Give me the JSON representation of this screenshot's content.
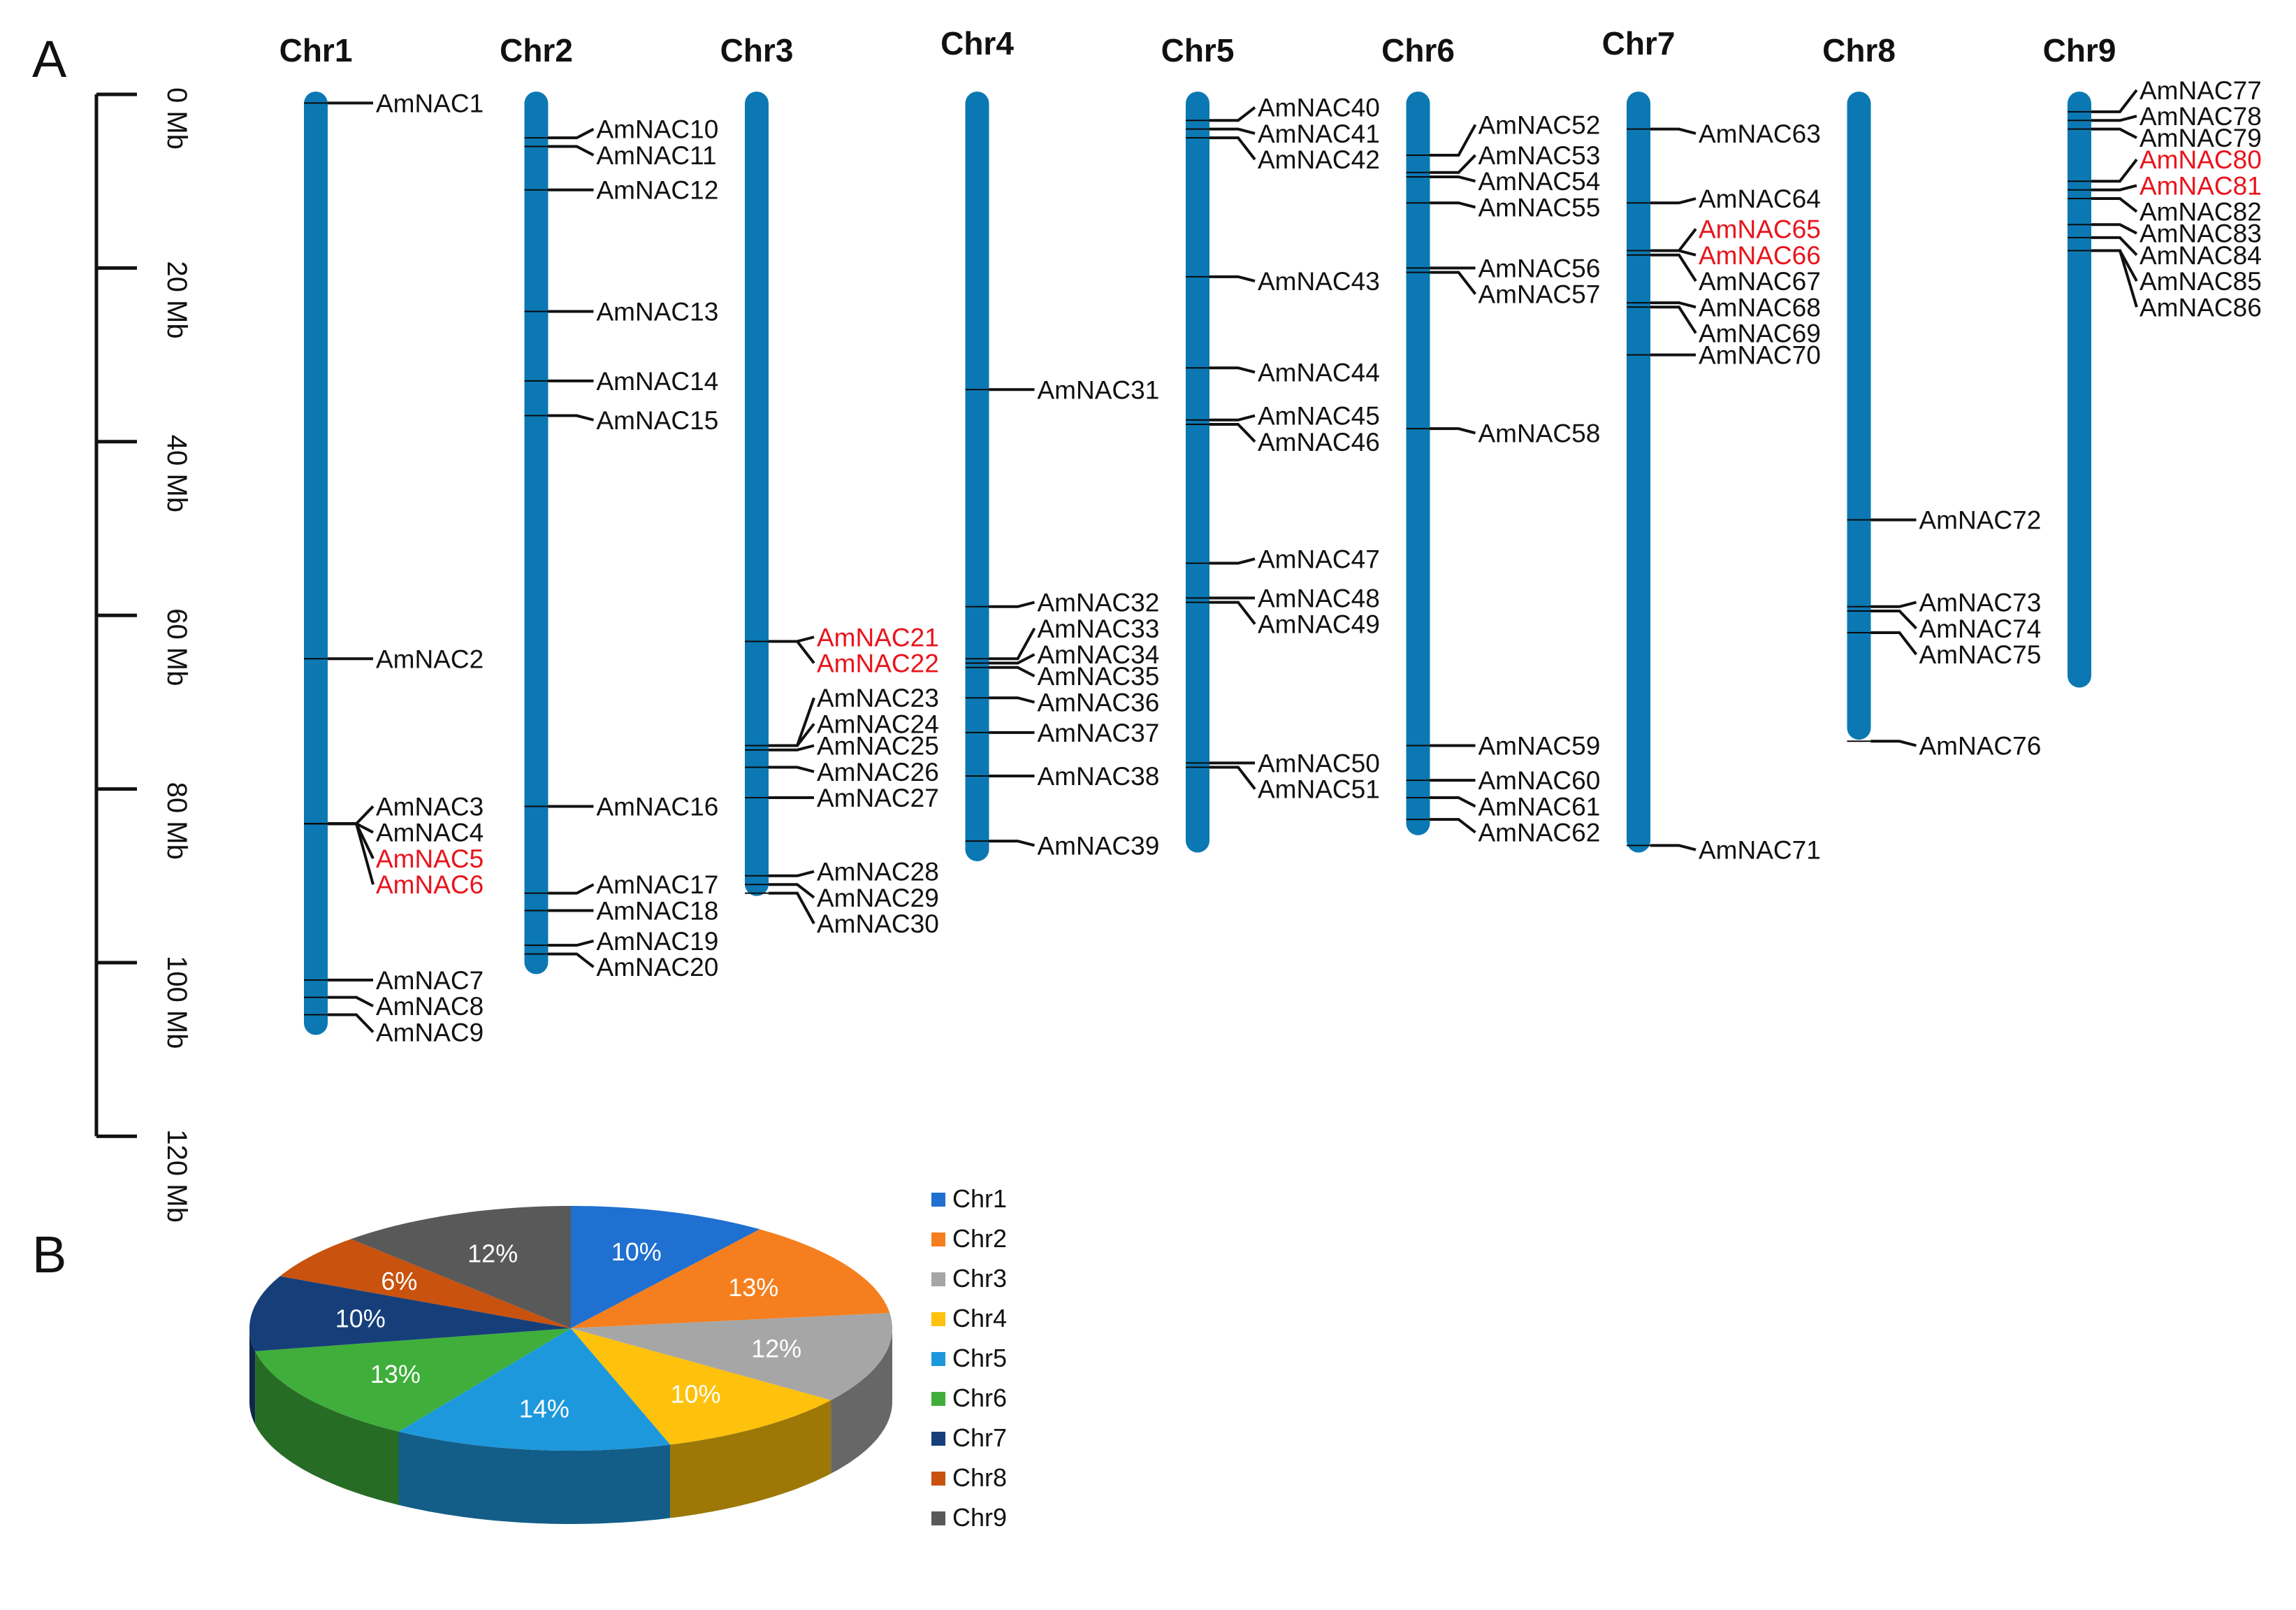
{
  "panels": {
    "a": "A",
    "b": "B"
  },
  "scale": {
    "unit": "Mb",
    "max": 120,
    "ticks": [
      {
        "value": 0,
        "label": "0 Mb"
      },
      {
        "value": 20,
        "label": "20 Mb"
      },
      {
        "value": 40,
        "label": "40 Mb"
      },
      {
        "value": 60,
        "label": "60 Mb"
      },
      {
        "value": 80,
        "label": "80 Mb"
      },
      {
        "value": 100,
        "label": "100 Mb"
      },
      {
        "value": 120,
        "label": "120 Mb"
      }
    ]
  },
  "colors": {
    "chromosome": "#0b78b3",
    "text": "#111111",
    "highlight": "#e8141c",
    "connector": "#111111"
  },
  "chart_data": [
    {
      "type": "chromosome-map",
      "title": "",
      "ylabel": "Mb",
      "ylim": [
        0,
        120
      ],
      "chromosomes": [
        {
          "name": "Chr1",
          "length": 108,
          "genes": [
            {
              "name": "AmNAC1",
              "pos": 1,
              "label_pos": 1,
              "highlight": false
            },
            {
              "name": "AmNAC2",
              "pos": 65,
              "label_pos": 65,
              "highlight": false
            },
            {
              "name": "AmNAC3",
              "pos": 84,
              "label_pos": 82,
              "highlight": false
            },
            {
              "name": "AmNAC4",
              "pos": 84,
              "label_pos": 85,
              "highlight": false
            },
            {
              "name": "AmNAC5",
              "pos": 84,
              "label_pos": 88,
              "highlight": true
            },
            {
              "name": "AmNAC6",
              "pos": 84,
              "label_pos": 91,
              "highlight": true
            },
            {
              "name": "AmNAC7",
              "pos": 102,
              "label_pos": 102,
              "highlight": false
            },
            {
              "name": "AmNAC8",
              "pos": 104,
              "label_pos": 105,
              "highlight": false
            },
            {
              "name": "AmNAC9",
              "pos": 106,
              "label_pos": 108,
              "highlight": false
            }
          ]
        },
        {
          "name": "Chr2",
          "length": 101,
          "genes": [
            {
              "name": "AmNAC10",
              "pos": 5,
              "label_pos": 4,
              "highlight": false
            },
            {
              "name": "AmNAC11",
              "pos": 6,
              "label_pos": 7,
              "highlight": false
            },
            {
              "name": "AmNAC12",
              "pos": 11,
              "label_pos": 11,
              "highlight": false
            },
            {
              "name": "AmNAC13",
              "pos": 25,
              "label_pos": 25,
              "highlight": false
            },
            {
              "name": "AmNAC14",
              "pos": 33,
              "label_pos": 33,
              "highlight": false
            },
            {
              "name": "AmNAC15",
              "pos": 37,
              "label_pos": 37.5,
              "highlight": false
            },
            {
              "name": "AmNAC16",
              "pos": 82,
              "label_pos": 82,
              "highlight": false
            },
            {
              "name": "AmNAC17",
              "pos": 92,
              "label_pos": 91,
              "highlight": false
            },
            {
              "name": "AmNAC18",
              "pos": 94,
              "label_pos": 94,
              "highlight": false
            },
            {
              "name": "AmNAC19",
              "pos": 98,
              "label_pos": 97.5,
              "highlight": false
            },
            {
              "name": "AmNAC20",
              "pos": 99,
              "label_pos": 100.5,
              "highlight": false
            }
          ]
        },
        {
          "name": "Chr3",
          "length": 92,
          "genes": [
            {
              "name": "AmNAC21",
              "pos": 63,
              "label_pos": 62.5,
              "highlight": true
            },
            {
              "name": "AmNAC22",
              "pos": 63,
              "label_pos": 65.5,
              "highlight": true
            },
            {
              "name": "AmNAC23",
              "pos": 75,
              "label_pos": 69.5,
              "highlight": false
            },
            {
              "name": "AmNAC24",
              "pos": 75,
              "label_pos": 72.5,
              "highlight": false
            },
            {
              "name": "AmNAC25",
              "pos": 75.5,
              "label_pos": 75,
              "highlight": false
            },
            {
              "name": "AmNAC26",
              "pos": 77.5,
              "label_pos": 78,
              "highlight": false
            },
            {
              "name": "AmNAC27",
              "pos": 81,
              "label_pos": 81,
              "highlight": false
            },
            {
              "name": "AmNAC28",
              "pos": 90,
              "label_pos": 89.5,
              "highlight": false
            },
            {
              "name": "AmNAC29",
              "pos": 91,
              "label_pos": 92.5,
              "highlight": false
            },
            {
              "name": "AmNAC30",
              "pos": 92,
              "label_pos": 95.5,
              "highlight": false
            }
          ]
        },
        {
          "name": "Chr4",
          "length": 88,
          "genes": [
            {
              "name": "AmNAC31",
              "pos": 34,
              "label_pos": 34,
              "highlight": false
            },
            {
              "name": "AmNAC32",
              "pos": 59,
              "label_pos": 58.5,
              "highlight": false
            },
            {
              "name": "AmNAC33",
              "pos": 65,
              "label_pos": 61.5,
              "highlight": false
            },
            {
              "name": "AmNAC34",
              "pos": 65.5,
              "label_pos": 64.5,
              "highlight": false
            },
            {
              "name": "AmNAC35",
              "pos": 66,
              "label_pos": 67,
              "highlight": false
            },
            {
              "name": "AmNAC36",
              "pos": 69.5,
              "label_pos": 70,
              "highlight": false
            },
            {
              "name": "AmNAC37",
              "pos": 73.5,
              "label_pos": 73.5,
              "highlight": false
            },
            {
              "name": "AmNAC38",
              "pos": 78.5,
              "label_pos": 78.5,
              "highlight": false
            },
            {
              "name": "AmNAC39",
              "pos": 86,
              "label_pos": 86.5,
              "highlight": false
            }
          ]
        },
        {
          "name": "Chr5",
          "length": 87,
          "genes": [
            {
              "name": "AmNAC40",
              "pos": 3,
              "label_pos": 1.5,
              "highlight": false
            },
            {
              "name": "AmNAC41",
              "pos": 4,
              "label_pos": 4.5,
              "highlight": false
            },
            {
              "name": "AmNAC42",
              "pos": 5,
              "label_pos": 7.5,
              "highlight": false
            },
            {
              "name": "AmNAC43",
              "pos": 21,
              "label_pos": 21.5,
              "highlight": false
            },
            {
              "name": "AmNAC44",
              "pos": 31.5,
              "label_pos": 32,
              "highlight": false
            },
            {
              "name": "AmNAC45",
              "pos": 37.5,
              "label_pos": 37,
              "highlight": false
            },
            {
              "name": "AmNAC46",
              "pos": 38,
              "label_pos": 40,
              "highlight": false
            },
            {
              "name": "AmNAC47",
              "pos": 54,
              "label_pos": 53.5,
              "highlight": false
            },
            {
              "name": "AmNAC48",
              "pos": 58,
              "label_pos": 58,
              "highlight": false
            },
            {
              "name": "AmNAC49",
              "pos": 58.5,
              "label_pos": 61,
              "highlight": false
            },
            {
              "name": "AmNAC50",
              "pos": 77,
              "label_pos": 77,
              "highlight": false
            },
            {
              "name": "AmNAC51",
              "pos": 77.5,
              "label_pos": 80,
              "highlight": false
            }
          ]
        },
        {
          "name": "Chr6",
          "length": 85,
          "genes": [
            {
              "name": "AmNAC52",
              "pos": 7,
              "label_pos": 3.5,
              "highlight": false
            },
            {
              "name": "AmNAC53",
              "pos": 9,
              "label_pos": 7,
              "highlight": false
            },
            {
              "name": "AmNAC54",
              "pos": 9.5,
              "label_pos": 10,
              "highlight": false
            },
            {
              "name": "AmNAC55",
              "pos": 12.5,
              "label_pos": 13,
              "highlight": false
            },
            {
              "name": "AmNAC56",
              "pos": 20,
              "label_pos": 20,
              "highlight": false
            },
            {
              "name": "AmNAC57",
              "pos": 20.5,
              "label_pos": 23,
              "highlight": false
            },
            {
              "name": "AmNAC58",
              "pos": 38.5,
              "label_pos": 39,
              "highlight": false
            },
            {
              "name": "AmNAC59",
              "pos": 75,
              "label_pos": 75,
              "highlight": false
            },
            {
              "name": "AmNAC60",
              "pos": 79,
              "label_pos": 79,
              "highlight": false
            },
            {
              "name": "AmNAC61",
              "pos": 81,
              "label_pos": 82,
              "highlight": false
            },
            {
              "name": "AmNAC62",
              "pos": 83.5,
              "label_pos": 85,
              "highlight": false
            }
          ]
        },
        {
          "name": "Chr7",
          "length": 87,
          "genes": [
            {
              "name": "AmNAC63",
              "pos": 4,
              "label_pos": 4.5,
              "highlight": false
            },
            {
              "name": "AmNAC64",
              "pos": 12.5,
              "label_pos": 12,
              "highlight": false
            },
            {
              "name": "AmNAC65",
              "pos": 18,
              "label_pos": 15.5,
              "highlight": true
            },
            {
              "name": "AmNAC66",
              "pos": 18,
              "label_pos": 18.5,
              "highlight": true
            },
            {
              "name": "AmNAC67",
              "pos": 18.5,
              "label_pos": 21.5,
              "highlight": false
            },
            {
              "name": "AmNAC68",
              "pos": 24,
              "label_pos": 24.5,
              "highlight": false
            },
            {
              "name": "AmNAC69",
              "pos": 24.5,
              "label_pos": 27.5,
              "highlight": false
            },
            {
              "name": "AmNAC70",
              "pos": 30,
              "label_pos": 30,
              "highlight": false
            },
            {
              "name": "AmNAC71",
              "pos": 86.5,
              "label_pos": 87,
              "highlight": false
            }
          ]
        },
        {
          "name": "Chr8",
          "length": 74,
          "genes": [
            {
              "name": "AmNAC72",
              "pos": 49,
              "label_pos": 49,
              "highlight": false
            },
            {
              "name": "AmNAC73",
              "pos": 59,
              "label_pos": 58.5,
              "highlight": false
            },
            {
              "name": "AmNAC74",
              "pos": 59.5,
              "label_pos": 61.5,
              "highlight": false
            },
            {
              "name": "AmNAC75",
              "pos": 62,
              "label_pos": 64.5,
              "highlight": false
            },
            {
              "name": "AmNAC76",
              "pos": 74.5,
              "label_pos": 75,
              "highlight": false
            }
          ]
        },
        {
          "name": "Chr9",
          "length": 68,
          "genes": [
            {
              "name": "AmNAC77",
              "pos": 2,
              "label_pos": -0.5,
              "highlight": false
            },
            {
              "name": "AmNAC78",
              "pos": 3,
              "label_pos": 2.5,
              "highlight": false
            },
            {
              "name": "AmNAC79",
              "pos": 4,
              "label_pos": 5,
              "highlight": false
            },
            {
              "name": "AmNAC80",
              "pos": 10,
              "label_pos": 7.5,
              "highlight": true
            },
            {
              "name": "AmNAC81",
              "pos": 11,
              "label_pos": 10.5,
              "highlight": true
            },
            {
              "name": "AmNAC82",
              "pos": 12,
              "label_pos": 13.5,
              "highlight": false
            },
            {
              "name": "AmNAC83",
              "pos": 15,
              "label_pos": 16,
              "highlight": false
            },
            {
              "name": "AmNAC84",
              "pos": 16.5,
              "label_pos": 18.5,
              "highlight": false
            },
            {
              "name": "AmNAC85",
              "pos": 18,
              "label_pos": 21.5,
              "highlight": false
            },
            {
              "name": "AmNAC86",
              "pos": 18,
              "label_pos": 24.5,
              "highlight": false
            }
          ]
        }
      ]
    },
    {
      "type": "pie",
      "title": "",
      "categories": [
        "Chr1",
        "Chr2",
        "Chr3",
        "Chr4",
        "Chr5",
        "Chr6",
        "Chr7",
        "Chr8",
        "Chr9"
      ],
      "values": [
        10,
        13,
        12,
        10,
        14,
        13,
        10,
        6,
        12
      ],
      "value_labels": [
        "10%",
        "13%",
        "12%",
        "10%",
        "14%",
        "13%",
        "10%",
        "6%",
        "12%"
      ],
      "colors": [
        "#1f70d0",
        "#f57f1e",
        "#a6a6a6",
        "#fec10c",
        "#1e98dc",
        "#3fae3b",
        "#163f7a",
        "#c8520e",
        "#595959"
      ],
      "legend_position": "right"
    }
  ]
}
